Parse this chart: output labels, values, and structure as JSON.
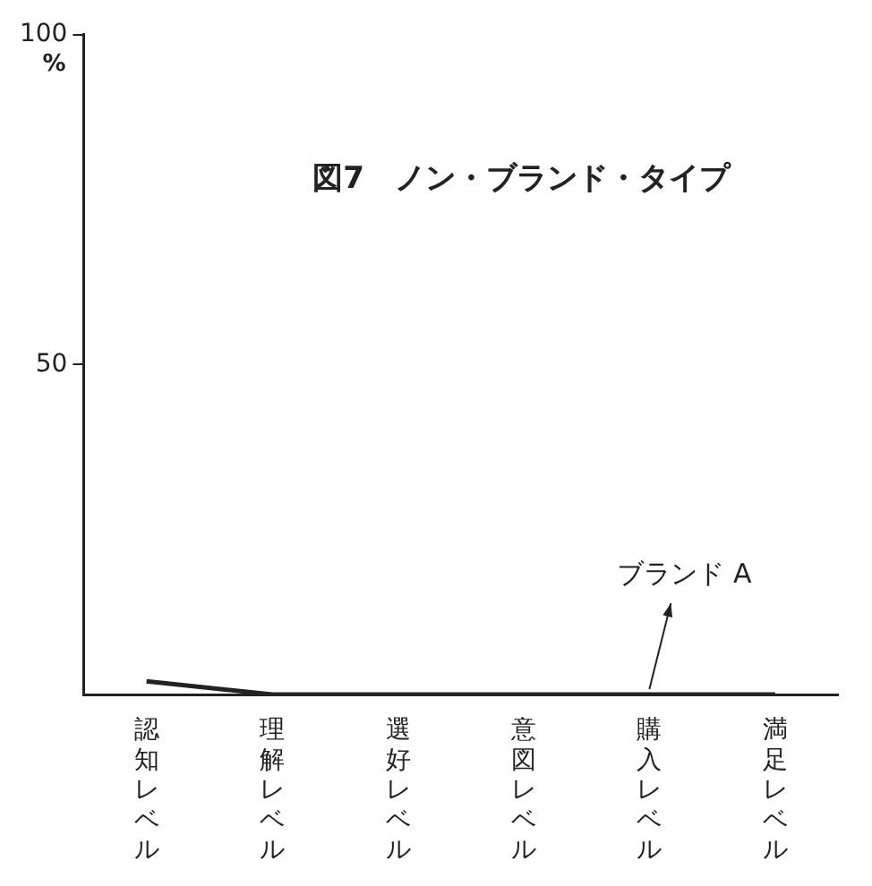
{
  "chart_data": {
    "type": "line",
    "title": "図7　ノン・ブランド・タイプ",
    "ylabel": "%",
    "categories": [
      "認知レベル",
      "理解レベル",
      "選好レベル",
      "意図レベル",
      "購入レベル",
      "満足レベル"
    ],
    "series": [
      {
        "color": "#222222",
        "values": [
          2,
          0,
          0,
          0,
          0,
          0
        ]
      }
    ],
    "ylim": [
      0,
      100
    ],
    "yticks": [
      50,
      100
    ],
    "grid": false,
    "legend": false,
    "marker": "none",
    "line_style": "solid",
    "annotations": [
      {
        "text": "ブランド A",
        "x": "購入レベル",
        "y": 0
      }
    ]
  }
}
